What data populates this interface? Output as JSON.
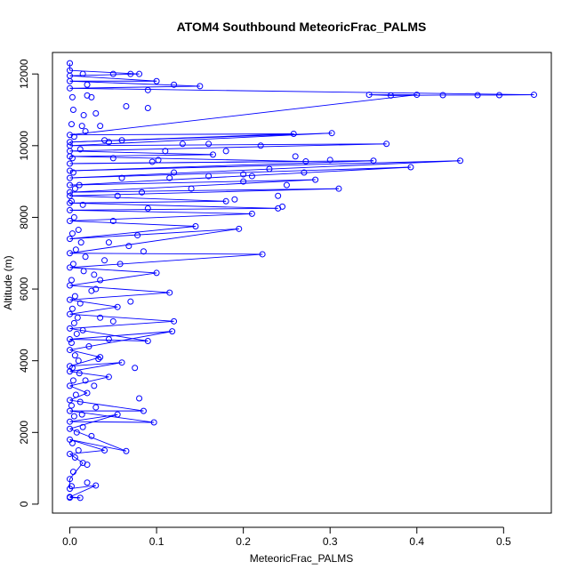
{
  "chart_data": {
    "type": "scatter",
    "title": "ATOM4 Southbound MeteoricFrac_PALMS",
    "xlabel": "MeteoricFrac_PALMS",
    "ylabel": "Altitude (m)",
    "xlim": [
      -0.02,
      0.555
    ],
    "ylim": [
      -250,
      12600
    ],
    "xticks": [
      0.0,
      0.1,
      0.2,
      0.3,
      0.4,
      0.5
    ],
    "xtick_labels": [
      "0.0",
      "0.1",
      "0.2",
      "0.3",
      "0.4",
      "0.5"
    ],
    "yticks": [
      0,
      2000,
      4000,
      6000,
      8000,
      10000,
      12000
    ],
    "ytick_labels": [
      "0",
      "2000",
      "4000",
      "6000",
      "8000",
      "10000",
      "12000"
    ],
    "grid": false,
    "legend": "none",
    "point_style": "open-circle",
    "color": "#0000ff",
    "series": [
      {
        "connected": true,
        "points": [
          [
            0.0,
            180
          ],
          [
            0.012,
            175
          ],
          [
            0.0,
            200
          ],
          [
            0.03,
            520
          ],
          [
            0.0,
            430
          ],
          [
            0.0,
            700
          ],
          [
            0.015,
            1150
          ],
          [
            0.0,
            1400
          ],
          [
            0.04,
            1500
          ],
          [
            0.0,
            1800
          ],
          [
            0.065,
            1480
          ],
          [
            0.0,
            2100
          ],
          [
            0.055,
            2500
          ],
          [
            0.0,
            2300
          ],
          [
            0.097,
            2280
          ],
          [
            0.0,
            2600
          ],
          [
            0.085,
            2600
          ],
          [
            0.0,
            2900
          ],
          [
            0.02,
            3100
          ],
          [
            0.0,
            3300
          ],
          [
            0.045,
            3550
          ],
          [
            0.0,
            3700
          ],
          [
            0.06,
            3950
          ],
          [
            0.0,
            3850
          ],
          [
            0.035,
            4100
          ],
          [
            0.0,
            4300
          ],
          [
            0.118,
            4820
          ],
          [
            0.0,
            4600
          ],
          [
            0.09,
            4550
          ],
          [
            0.0,
            4900
          ],
          [
            0.12,
            5100
          ],
          [
            0.0,
            5300
          ],
          [
            0.055,
            5500
          ],
          [
            0.0,
            5700
          ],
          [
            0.115,
            5900
          ],
          [
            0.0,
            6100
          ],
          [
            0.1,
            6450
          ],
          [
            0.0,
            6600
          ],
          [
            0.222,
            6970
          ],
          [
            0.0,
            7000
          ],
          [
            0.195,
            7680
          ],
          [
            0.0,
            7400
          ],
          [
            0.145,
            7750
          ],
          [
            0.0,
            7900
          ],
          [
            0.21,
            8100
          ],
          [
            0.0,
            8200
          ],
          [
            0.24,
            8250
          ],
          [
            0.0,
            8400
          ],
          [
            0.18,
            8450
          ],
          [
            0.0,
            8600
          ],
          [
            0.31,
            8800
          ],
          [
            0.0,
            8700
          ],
          [
            0.283,
            9050
          ],
          [
            0.0,
            8900
          ],
          [
            0.393,
            9400
          ],
          [
            0.0,
            9100
          ],
          [
            0.45,
            9580
          ],
          [
            0.0,
            9300
          ],
          [
            0.35,
            9580
          ],
          [
            0.0,
            9500
          ],
          [
            0.272,
            9560
          ],
          [
            0.0,
            9700
          ],
          [
            0.165,
            9750
          ],
          [
            0.0,
            9850
          ],
          [
            0.365,
            10050
          ],
          [
            0.0,
            10000
          ],
          [
            0.302,
            10350
          ],
          [
            0.0,
            10100
          ],
          [
            0.258,
            10330
          ],
          [
            0.0,
            10300
          ],
          [
            0.4,
            11420
          ],
          [
            0.345,
            11420
          ],
          [
            0.37,
            11400
          ],
          [
            0.43,
            11410
          ],
          [
            0.47,
            11410
          ],
          [
            0.495,
            11410
          ],
          [
            0.535,
            11420
          ],
          [
            0.0,
            11600
          ],
          [
            0.15,
            11660
          ],
          [
            0.0,
            11800
          ],
          [
            0.1,
            11800
          ],
          [
            0.0,
            11950
          ],
          [
            0.08,
            12000
          ],
          [
            0.0,
            12100
          ],
          [
            0.0,
            12300
          ]
        ]
      },
      {
        "connected": false,
        "points": [
          [
            0.002,
            500
          ],
          [
            0.004,
            900
          ],
          [
            0.006,
            1300
          ],
          [
            0.003,
            1700
          ],
          [
            0.008,
            2000
          ],
          [
            0.005,
            2450
          ],
          [
            0.002,
            2750
          ],
          [
            0.007,
            3050
          ],
          [
            0.004,
            3450
          ],
          [
            0.003,
            3800
          ],
          [
            0.006,
            4150
          ],
          [
            0.002,
            4500
          ],
          [
            0.008,
            4750
          ],
          [
            0.005,
            5050
          ],
          [
            0.003,
            5450
          ],
          [
            0.006,
            5800
          ],
          [
            0.002,
            6250
          ],
          [
            0.004,
            6700
          ],
          [
            0.007,
            7100
          ],
          [
            0.003,
            7550
          ],
          [
            0.005,
            8000
          ],
          [
            0.002,
            8450
          ],
          [
            0.006,
            8800
          ],
          [
            0.004,
            9250
          ],
          [
            0.003,
            9650
          ],
          [
            0.005,
            10250
          ],
          [
            0.002,
            10600
          ],
          [
            0.004,
            11000
          ],
          [
            0.003,
            11350
          ],
          [
            0.02,
            1100
          ],
          [
            0.025,
            1900
          ],
          [
            0.03,
            2700
          ],
          [
            0.028,
            3300
          ],
          [
            0.022,
            4400
          ],
          [
            0.035,
            5200
          ],
          [
            0.03,
            6000
          ],
          [
            0.04,
            6800
          ],
          [
            0.045,
            7300
          ],
          [
            0.05,
            7900
          ],
          [
            0.055,
            8600
          ],
          [
            0.06,
            9100
          ],
          [
            0.05,
            9650
          ],
          [
            0.04,
            10150
          ],
          [
            0.035,
            10550
          ],
          [
            0.03,
            10900
          ],
          [
            0.025,
            11350
          ],
          [
            0.075,
            3800
          ],
          [
            0.08,
            2950
          ],
          [
            0.07,
            5650
          ],
          [
            0.085,
            7050
          ],
          [
            0.09,
            8250
          ],
          [
            0.095,
            9550
          ],
          [
            0.11,
            9850
          ],
          [
            0.13,
            10050
          ],
          [
            0.16,
            10050
          ],
          [
            0.12,
            9250
          ],
          [
            0.14,
            8800
          ],
          [
            0.2,
            9000
          ],
          [
            0.23,
            9350
          ],
          [
            0.26,
            9700
          ],
          [
            0.3,
            9600
          ],
          [
            0.27,
            9250
          ],
          [
            0.25,
            8900
          ],
          [
            0.18,
            9850
          ],
          [
            0.22,
            10000
          ],
          [
            0.2,
            9200
          ],
          [
            0.19,
            8500
          ],
          [
            0.24,
            8600
          ],
          [
            0.245,
            8300
          ],
          [
            0.12,
            11700
          ],
          [
            0.05,
            12000
          ],
          [
            0.07,
            12000
          ],
          [
            0.09,
            11050
          ],
          [
            0.065,
            11100
          ],
          [
            0.02,
            11400
          ],
          [
            0.02,
            11700
          ],
          [
            0.015,
            12000
          ],
          [
            0.06,
            10150
          ],
          [
            0.045,
            10100
          ],
          [
            0.09,
            11550
          ],
          [
            0.033,
            4050
          ],
          [
            0.045,
            4600
          ],
          [
            0.058,
            6700
          ],
          [
            0.068,
            7200
          ],
          [
            0.078,
            7500
          ],
          [
            0.083,
            8700
          ],
          [
            0.102,
            9600
          ],
          [
            0.115,
            9100
          ],
          [
            0.16,
            9150
          ],
          [
            0.21,
            9150
          ],
          [
            0.035,
            6250
          ],
          [
            0.05,
            5100
          ],
          [
            0.025,
            5950
          ],
          [
            0.028,
            6400
          ],
          [
            0.015,
            2150
          ],
          [
            0.012,
            2850
          ],
          [
            0.018,
            3450
          ],
          [
            0.01,
            4000
          ],
          [
            0.015,
            4850
          ],
          [
            0.012,
            5600
          ],
          [
            0.018,
            6900
          ],
          [
            0.01,
            7650
          ],
          [
            0.015,
            8350
          ],
          [
            0.012,
            9900
          ],
          [
            0.018,
            10400
          ],
          [
            0.014,
            10550
          ],
          [
            0.016,
            10850
          ],
          [
            0.011,
            8900
          ],
          [
            0.013,
            7300
          ],
          [
            0.016,
            6500
          ],
          [
            0.009,
            5200
          ],
          [
            0.011,
            3650
          ],
          [
            0.014,
            2500
          ],
          [
            0.01,
            1500
          ],
          [
            0.02,
            600
          ]
        ]
      }
    ]
  }
}
